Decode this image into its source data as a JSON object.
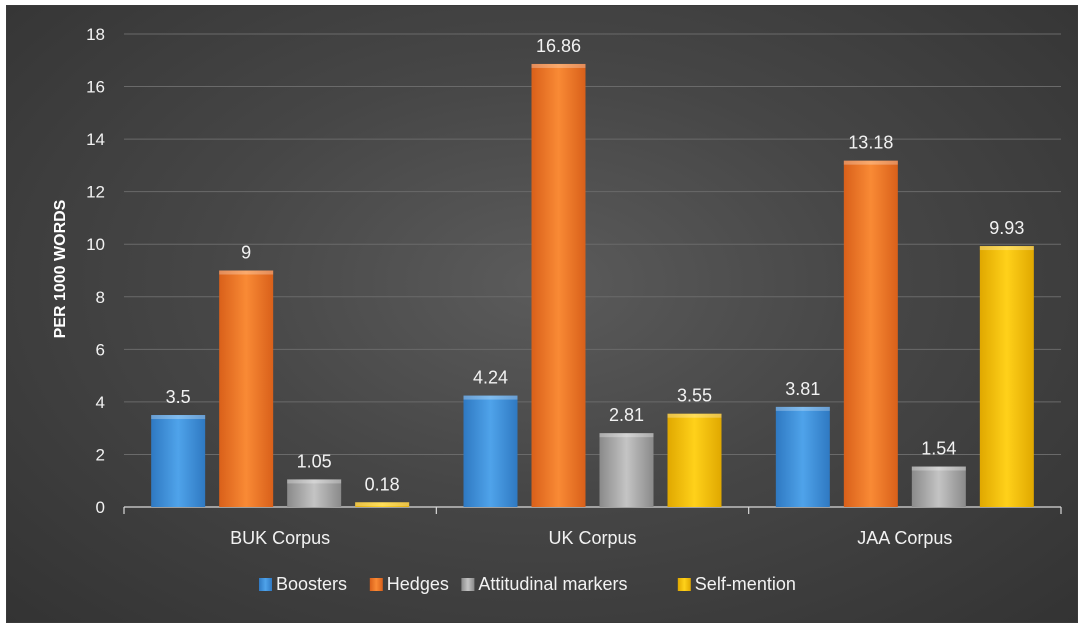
{
  "chart_data": {
    "type": "bar",
    "title": "",
    "xlabel": "",
    "ylabel": "PER 1000 WORDS",
    "categories": [
      "BUK Corpus",
      "UK Corpus",
      "JAA Corpus"
    ],
    "ylim": [
      0,
      18
    ],
    "yticks": [
      "0",
      "2",
      "4",
      "6",
      "8",
      "10",
      "12",
      "14",
      "16",
      "18"
    ],
    "grid": true,
    "legend_position": "bottom",
    "series": [
      {
        "name": "Boosters",
        "values": [
          3.5,
          4.24,
          3.81
        ],
        "labels": [
          "3.5",
          "4.24",
          "3.81"
        ],
        "color": "#3d8fd6"
      },
      {
        "name": "Hedges",
        "values": [
          9,
          16.86,
          13.18
        ],
        "labels": [
          "9",
          "16.86",
          "13.18"
        ],
        "color": "#ed7222"
      },
      {
        "name": "Attitudinal markers",
        "values": [
          1.05,
          2.81,
          1.54
        ],
        "labels": [
          "1.05",
          "2.81",
          "1.54"
        ],
        "color": "#9f9f9f"
      },
      {
        "name": "Self-mention",
        "values": [
          0.18,
          3.55,
          9.93
        ],
        "labels": [
          "0.18",
          "3.55",
          "9.93"
        ],
        "color": "#ffc000"
      }
    ]
  }
}
